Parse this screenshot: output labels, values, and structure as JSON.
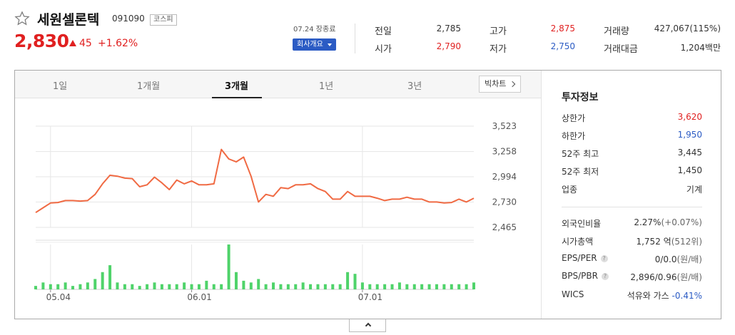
{
  "stock": {
    "name": "세원셀론텍",
    "code": "091090",
    "market": "코스피",
    "price": "2,830",
    "change_abs": "45",
    "change_rate": "+1.62%",
    "direction": "up",
    "date_market": "07.24 장종료",
    "company_button": "회사개요"
  },
  "quotes": {
    "prev_label": "전일",
    "prev_value": "2,785",
    "open_label": "시가",
    "open_value": "2,790",
    "high_label": "고가",
    "high_value": "2,875",
    "low_label": "저가",
    "low_value": "2,750",
    "volume_label": "거래량",
    "volume_value": "427,067(115%)",
    "amount_label": "거래대금",
    "amount_value": "1,204백만"
  },
  "tabs": [
    {
      "label": "1일",
      "active": false
    },
    {
      "label": "1개월",
      "active": false
    },
    {
      "label": "3개월",
      "active": true
    },
    {
      "label": "1년",
      "active": false
    },
    {
      "label": "3년",
      "active": false
    }
  ],
  "big_chart_button": "빅차트",
  "invest": {
    "title": "투자정보",
    "upper_limit_label": "상한가",
    "upper_limit_value": "3,620",
    "lower_limit_label": "하한가",
    "lower_limit_value": "1,950",
    "high52_label": "52주 최고",
    "high52_value": "3,445",
    "low52_label": "52주 최저",
    "low52_value": "1,450",
    "sector_label": "업종",
    "sector_value": "기계",
    "foreign_label": "외국인비율",
    "foreign_value": "2.27%",
    "foreign_change": "(+0.07%)",
    "mktcap_label": "시가총액",
    "mktcap_value": "1,752 억",
    "mktcap_rank": "(512위)",
    "eps_label": "EPS/PER",
    "eps_value": "0/0.0",
    "eps_unit": "(원/배)",
    "bps_label": "BPS/PBR",
    "bps_value": "2,896/0.96",
    "bps_unit": "(원/배)",
    "wics_label": "WICS",
    "wics_value": "석유와 가스",
    "wics_change": "-0.41%"
  },
  "chart_data": {
    "type": "line",
    "yticks": [
      "3,523",
      "3,258",
      "2,994",
      "2,730",
      "2,465"
    ],
    "ytick_values": [
      3523,
      3258,
      2994,
      2730,
      2465
    ],
    "ylim": [
      2465,
      3523
    ],
    "xticks": [
      "05.04",
      "06.01",
      "07.01"
    ],
    "xtick_index": [
      2,
      21,
      44
    ],
    "price_series": [
      2620,
      2670,
      2720,
      2725,
      2745,
      2745,
      2740,
      2745,
      2810,
      2920,
      3010,
      3000,
      2980,
      2975,
      2890,
      2910,
      2990,
      2930,
      2860,
      2960,
      2920,
      2950,
      2910,
      2910,
      2920,
      3280,
      3180,
      3150,
      3200,
      3000,
      2730,
      2810,
      2790,
      2880,
      2870,
      2910,
      2910,
      2920,
      2870,
      2840,
      2760,
      2760,
      2840,
      2790,
      2790,
      2790,
      2770,
      2745,
      2760,
      2760,
      2780,
      2760,
      2760,
      2730,
      2730,
      2720,
      2725,
      2760,
      2730,
      2770
    ],
    "volume_series": [
      2,
      4,
      3,
      3,
      4,
      2,
      3,
      4,
      6,
      10,
      14,
      4,
      3,
      3,
      2,
      3,
      4,
      3,
      3,
      3,
      4,
      3,
      3,
      5,
      3,
      3,
      26,
      10,
      5,
      4,
      6,
      3,
      4,
      3,
      3,
      3,
      4,
      3,
      3,
      3,
      3,
      3,
      10,
      9,
      4,
      3,
      3,
      3,
      3,
      4,
      3,
      3,
      3,
      3,
      3,
      3,
      3,
      3,
      3,
      4
    ],
    "grid": true,
    "colors": {
      "line": "#f06a43",
      "volume": "#4fd36a",
      "grid": "#e6e6e6",
      "axis": "#555555"
    }
  }
}
